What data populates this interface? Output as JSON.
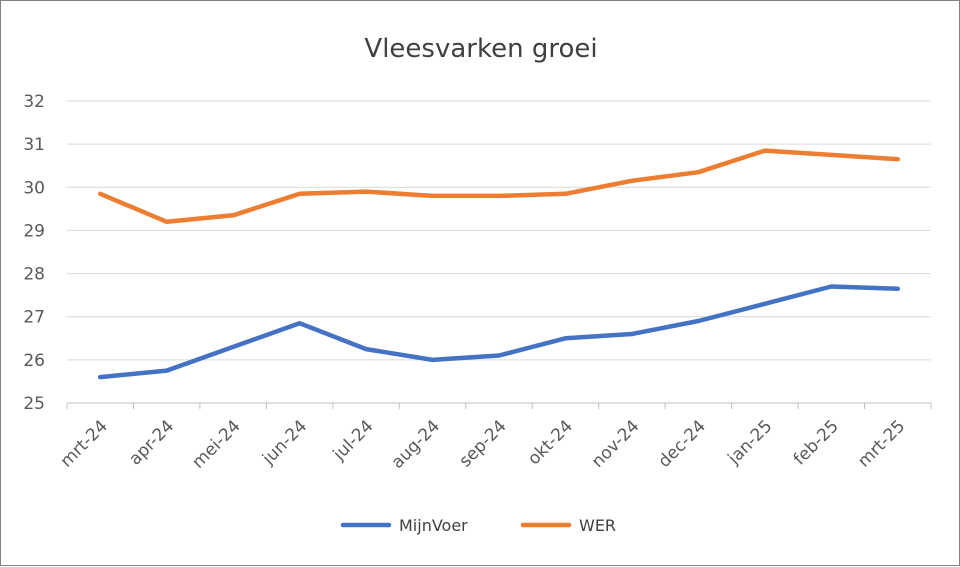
{
  "chart_data": {
    "type": "line",
    "title": "Vleesvarken groei",
    "xlabel": "",
    "ylabel": "",
    "categories": [
      "mrt-24",
      "apr-24",
      "mei-24",
      "jun-24",
      "jul-24",
      "aug-24",
      "sep-24",
      "okt-24",
      "nov-24",
      "dec-24",
      "jan-25",
      "feb-25",
      "mrt-25"
    ],
    "ylim": [
      25,
      32
    ],
    "yticks": [
      25,
      26,
      27,
      28,
      29,
      30,
      31,
      32
    ],
    "grid": true,
    "legend_position": "bottom",
    "series": [
      {
        "name": "MijnVoer",
        "color": "#4472c4",
        "values": [
          25.6,
          25.75,
          26.3,
          26.85,
          26.25,
          26.0,
          26.1,
          26.5,
          26.6,
          26.9,
          27.3,
          27.7,
          27.65
        ]
      },
      {
        "name": "WER",
        "color": "#ed7d31",
        "values": [
          29.85,
          29.2,
          29.35,
          29.85,
          29.9,
          29.8,
          29.8,
          29.85,
          30.15,
          30.35,
          30.85,
          30.75,
          30.65
        ]
      }
    ]
  }
}
